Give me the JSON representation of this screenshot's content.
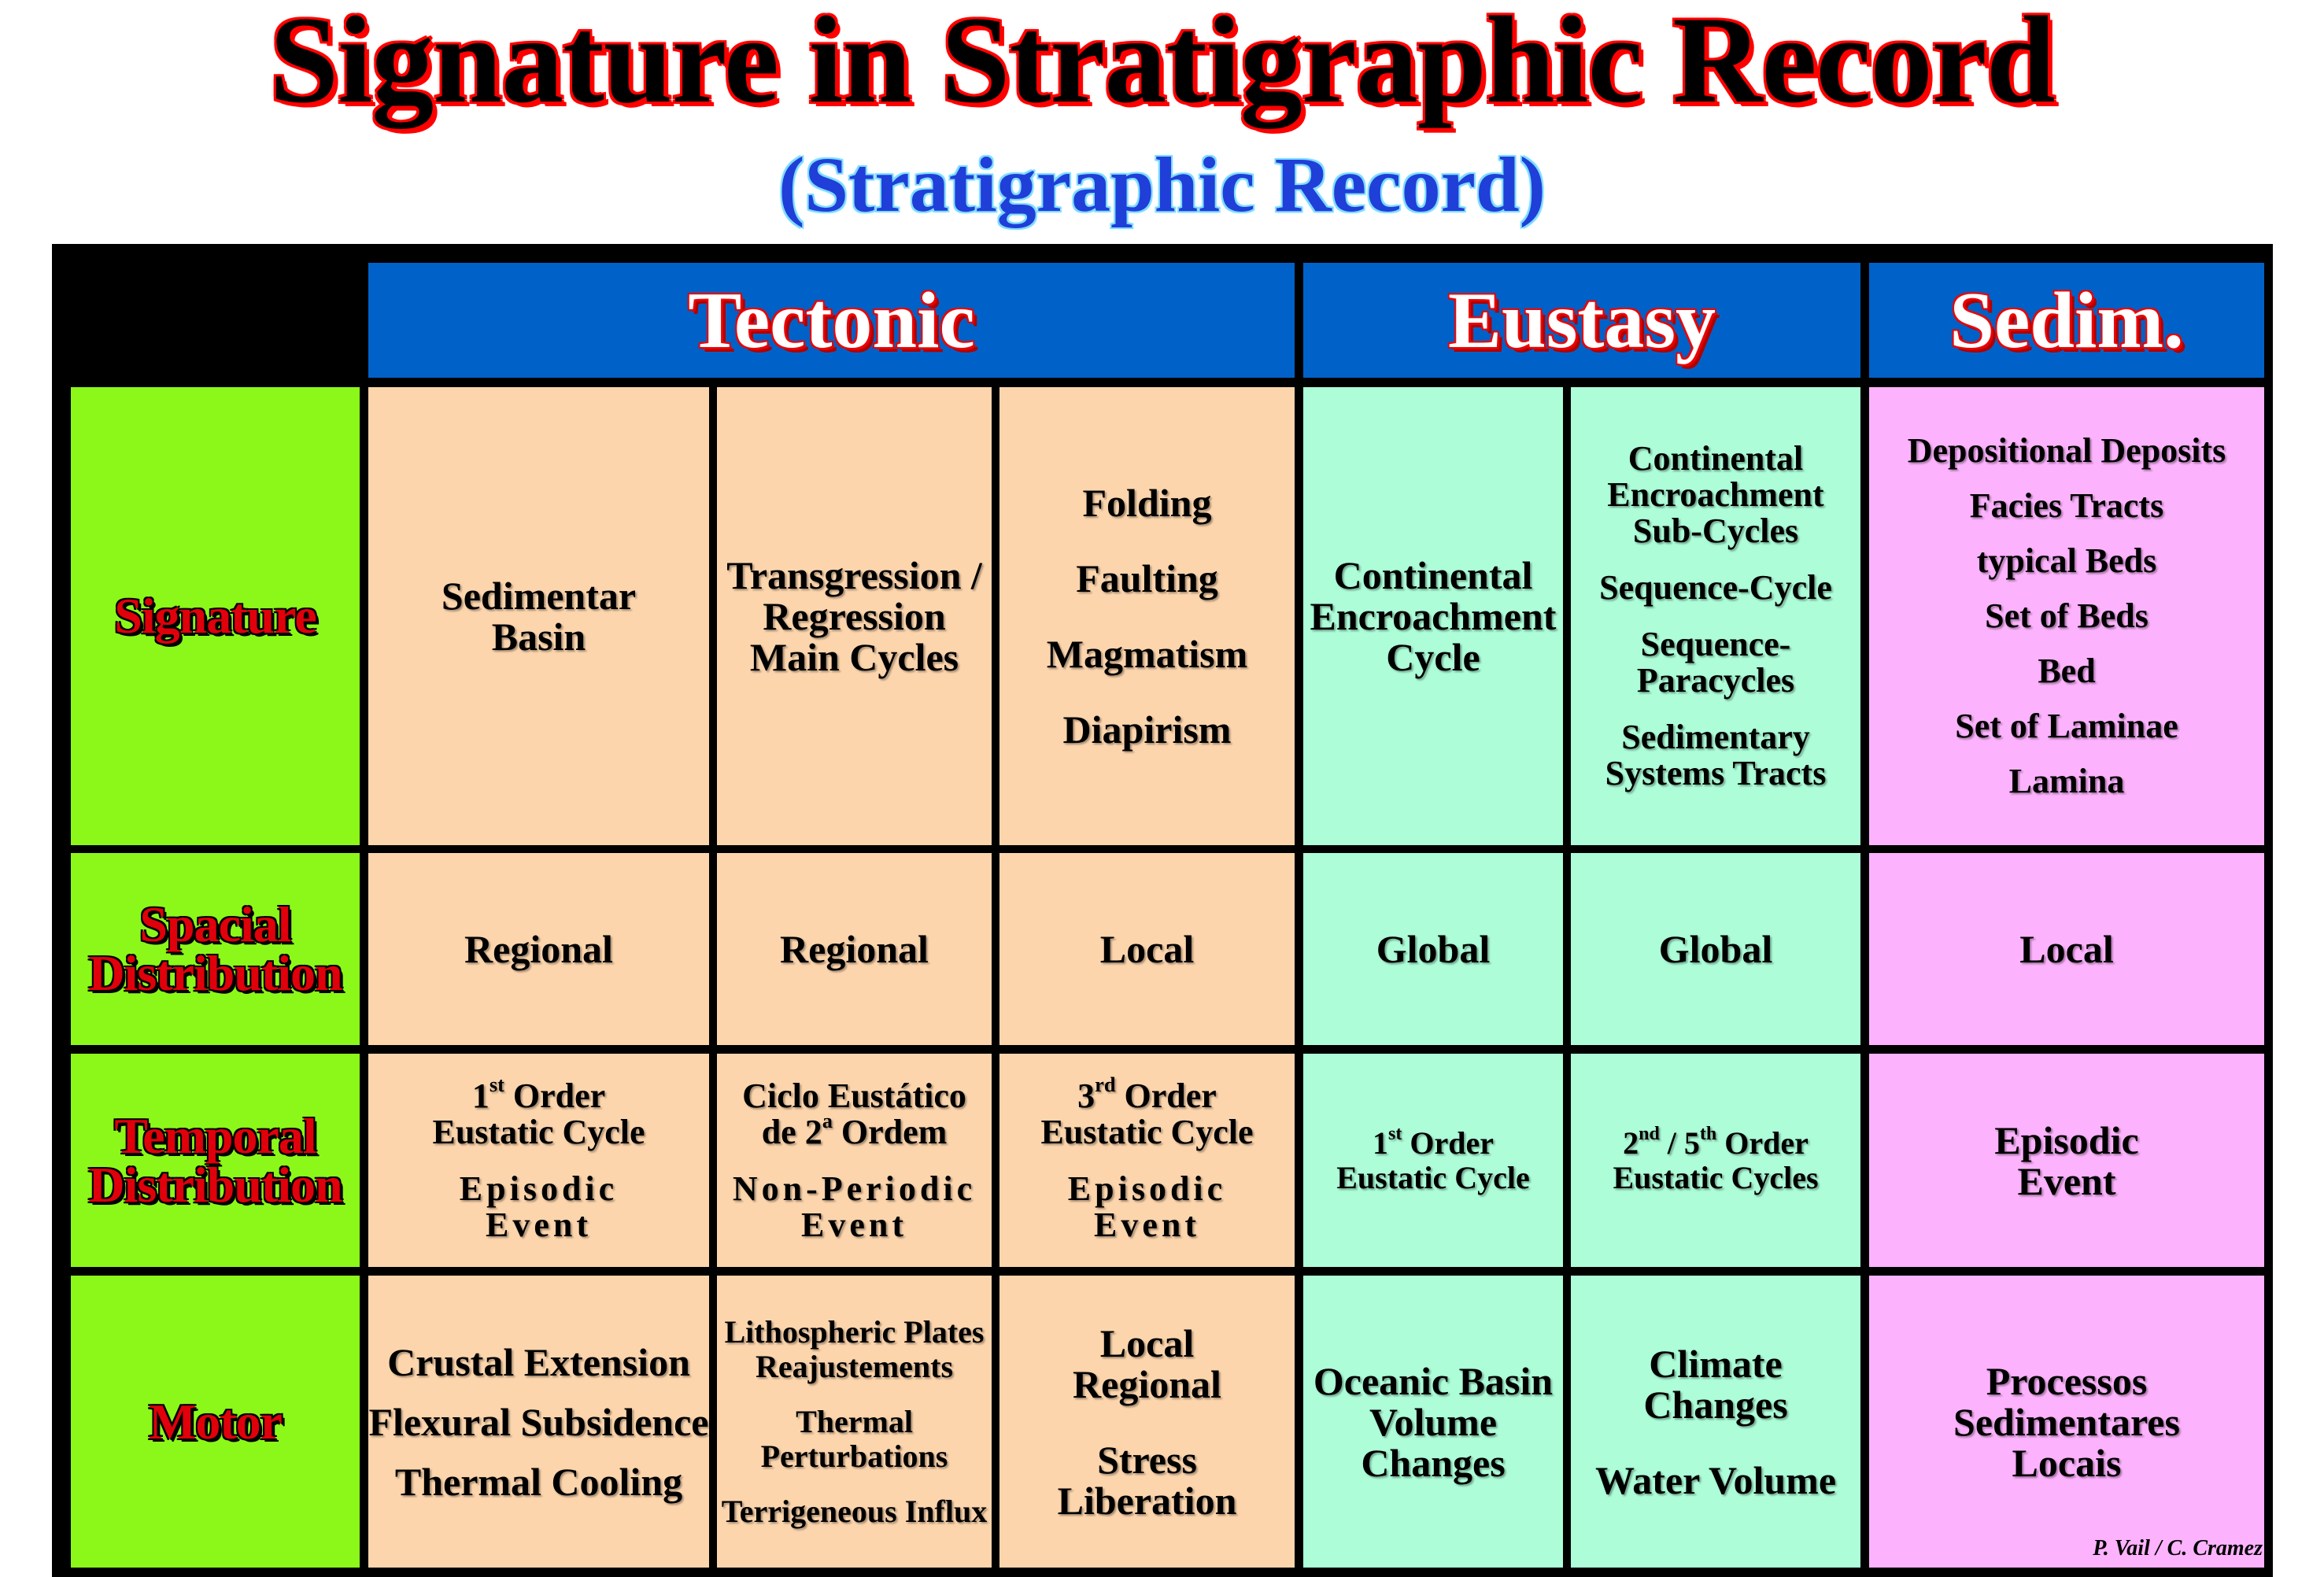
{
  "title": "Signature in Stratigraphic Record",
  "subtitle": "(Stratigraphic Record)",
  "columns": {
    "tectonic": "Tectonic",
    "eustasy": "Eustasy",
    "sedim": "Sedim."
  },
  "rows": {
    "signature": "Signature",
    "spacial_1": "Spacial",
    "spacial_2": "Distribution",
    "temporal_1": "Temporal",
    "temporal_2": "Distribution",
    "motor": "Motor"
  },
  "signature": {
    "c1": [
      "Sedimentar",
      "Basin"
    ],
    "c2": [
      "Transgression /",
      "Regression",
      "Main Cycles"
    ],
    "c3": [
      "Folding",
      "Faulting",
      "Magmatism",
      "Diapirism"
    ],
    "c4": [
      "Continental",
      "Encroachment",
      "Cycle"
    ],
    "c5": [
      "Continental",
      "Encroachment",
      "Sub-Cycles",
      "Sequence-Cycle",
      "Sequence-",
      "Paracycles",
      "Sedimentary",
      "Systems Tracts"
    ],
    "c6": [
      "Depositional Deposits",
      "Facies Tracts",
      "typical Beds",
      "Set of Beds",
      "Bed",
      "Set of Laminae",
      "Lamina"
    ]
  },
  "spacial": {
    "c1": "Regional",
    "c2": "Regional",
    "c3": "Local",
    "c4": "Global",
    "c5": "Global",
    "c6": "Local"
  },
  "temporal": {
    "c1": {
      "num": "1",
      "sup": "st",
      "rest": " Order",
      "line2": "Eustatic Cycle",
      "ev1": "Episodic",
      "ev2": "Event"
    },
    "c2": {
      "line1": "Ciclo Eustático",
      "pre": "de 2",
      "sup": "a",
      "rest": " Ordem",
      "ev1": "Non-Periodic",
      "ev2": "Event"
    },
    "c3": {
      "num": "3",
      "sup": "rd",
      "rest": " Order",
      "line2": "Eustatic Cycle",
      "ev1": "Episodic",
      "ev2": "Event"
    },
    "c4": {
      "num": "1",
      "sup": "st",
      "rest": " Order",
      "line2": "Eustatic Cycle"
    },
    "c5": {
      "num": "2",
      "sup": "nd",
      "mid": " / 5",
      "sup2": "th",
      "rest": " Order",
      "line2": "Eustatic Cycles"
    },
    "c6": [
      "Episodic",
      "Event"
    ]
  },
  "motor": {
    "c1": [
      "Crustal Extension",
      "Flexural Subsidence",
      "Thermal Cooling"
    ],
    "c2": [
      "Lithospheric Plates",
      "Reajustements",
      "Thermal",
      "Perturbations",
      "Terrigeneous Influx"
    ],
    "c3": [
      "Local",
      "Regional",
      "Stress",
      "Liberation"
    ],
    "c4": [
      "Oceanic Basin",
      "Volume",
      "Changes"
    ],
    "c5": [
      "Climate",
      "Changes",
      "Water Volume"
    ],
    "c6": [
      "Processos",
      "Sedimentares",
      "Locais"
    ]
  },
  "credit": "P. Vail / C. Cramez",
  "colors": {
    "header_blue": "#0062c8",
    "label_green": "#8cf81a",
    "tectonic_peach": "#fcd5ad",
    "eustasy_mint": "#acfdd8",
    "sedim_pink": "#fcb2fc",
    "label_red": "#e0000b"
  }
}
